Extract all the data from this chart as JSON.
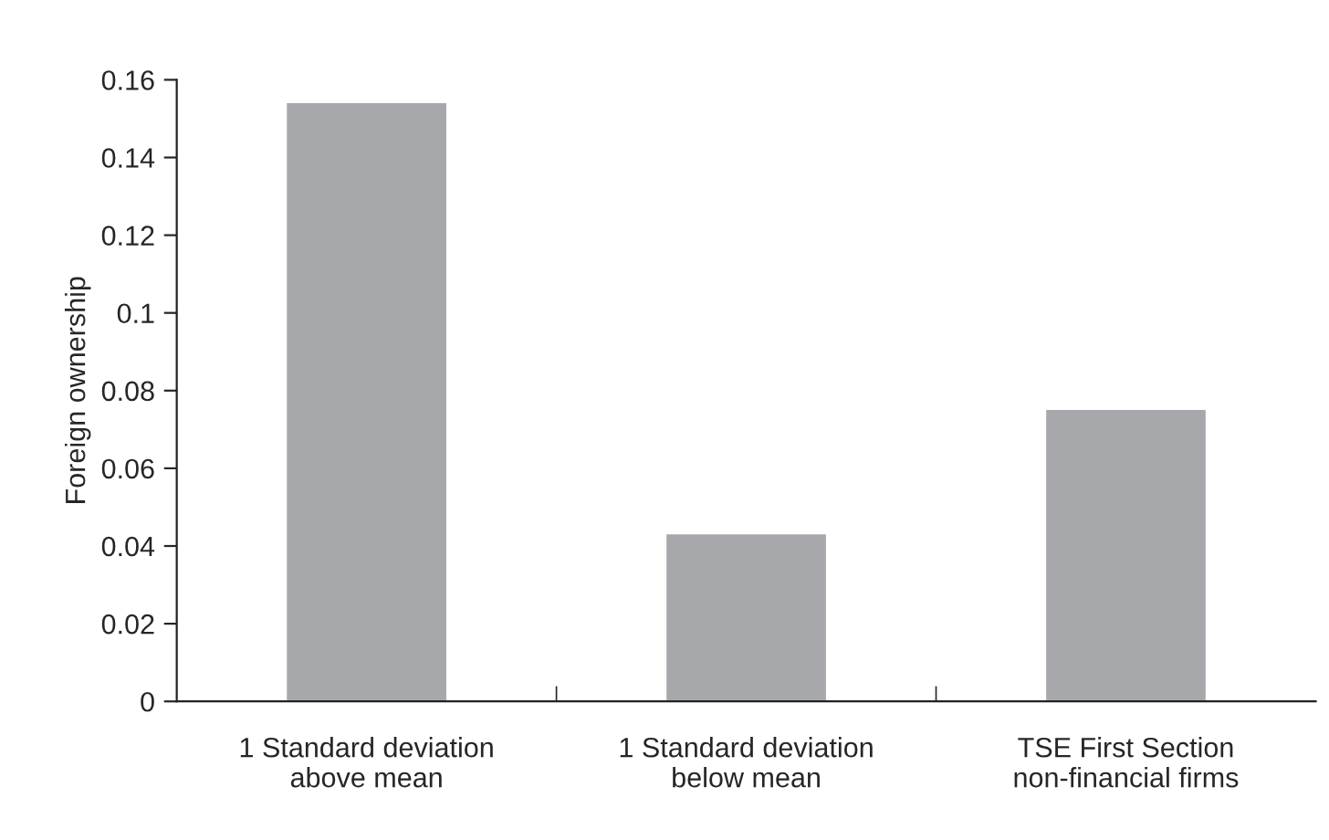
{
  "chart_data": {
    "type": "bar",
    "ylabel": "Foreign ownership",
    "categories": [
      "1 Standard deviation\nabove mean",
      "1 Standard deviation\nbelow mean",
      "TSE First Section\nnon-financial firms"
    ],
    "values": [
      0.154,
      0.043,
      0.075
    ],
    "color": "#a7a8ab",
    "ylim": [
      0,
      0.16
    ],
    "yticks": [
      0,
      0.02,
      0.04,
      0.06,
      0.08,
      0.1,
      0.12,
      0.14,
      0.16
    ],
    "grid": false
  }
}
